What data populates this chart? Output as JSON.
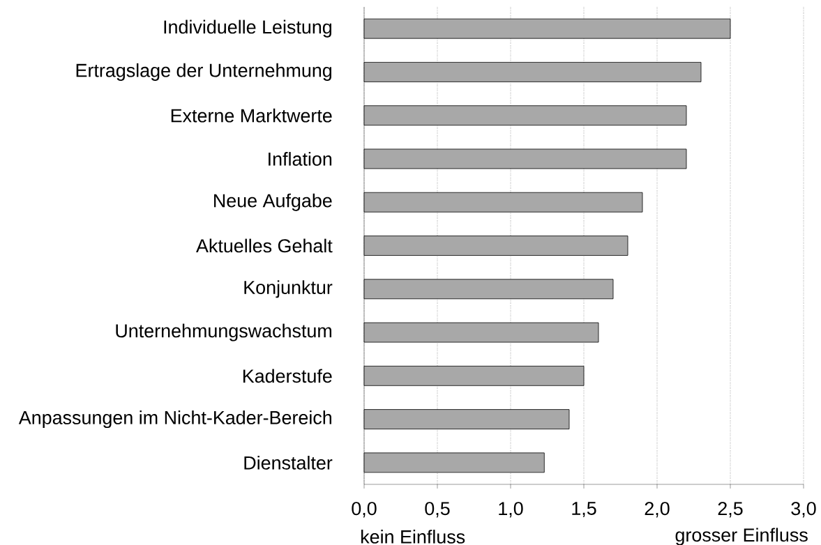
{
  "chart_data": {
    "type": "bar",
    "orientation": "horizontal",
    "categories": [
      "Individuelle Leistung",
      "Ertragslage der Unternehmung",
      "Externe Marktwerte",
      "Inflation",
      "Neue Aufgabe",
      "Aktuelles Gehalt",
      "Konjunktur",
      "Unternehmungswachstum",
      "Kaderstufe",
      "Anpassungen im Nicht-Kader-Bereich",
      "Dienstalter"
    ],
    "values": [
      2.5,
      2.3,
      2.2,
      2.2,
      1.9,
      1.8,
      1.7,
      1.6,
      1.5,
      1.4,
      1.23
    ],
    "color": "#a8a8a8",
    "xlim": [
      0,
      3
    ],
    "xticks": [
      {
        "value": 0,
        "label": "0,0"
      },
      {
        "value": 0.5,
        "label": "0,5"
      },
      {
        "value": 1,
        "label": "1,0"
      },
      {
        "value": 1.5,
        "label": "1,5"
      },
      {
        "value": 2,
        "label": "2,0"
      },
      {
        "value": 2.5,
        "label": "2,5"
      },
      {
        "value": 3,
        "label": "3,0"
      }
    ],
    "grid": "x",
    "annotations": [
      "kein Einfluss",
      "grosser Einfluss"
    ]
  }
}
